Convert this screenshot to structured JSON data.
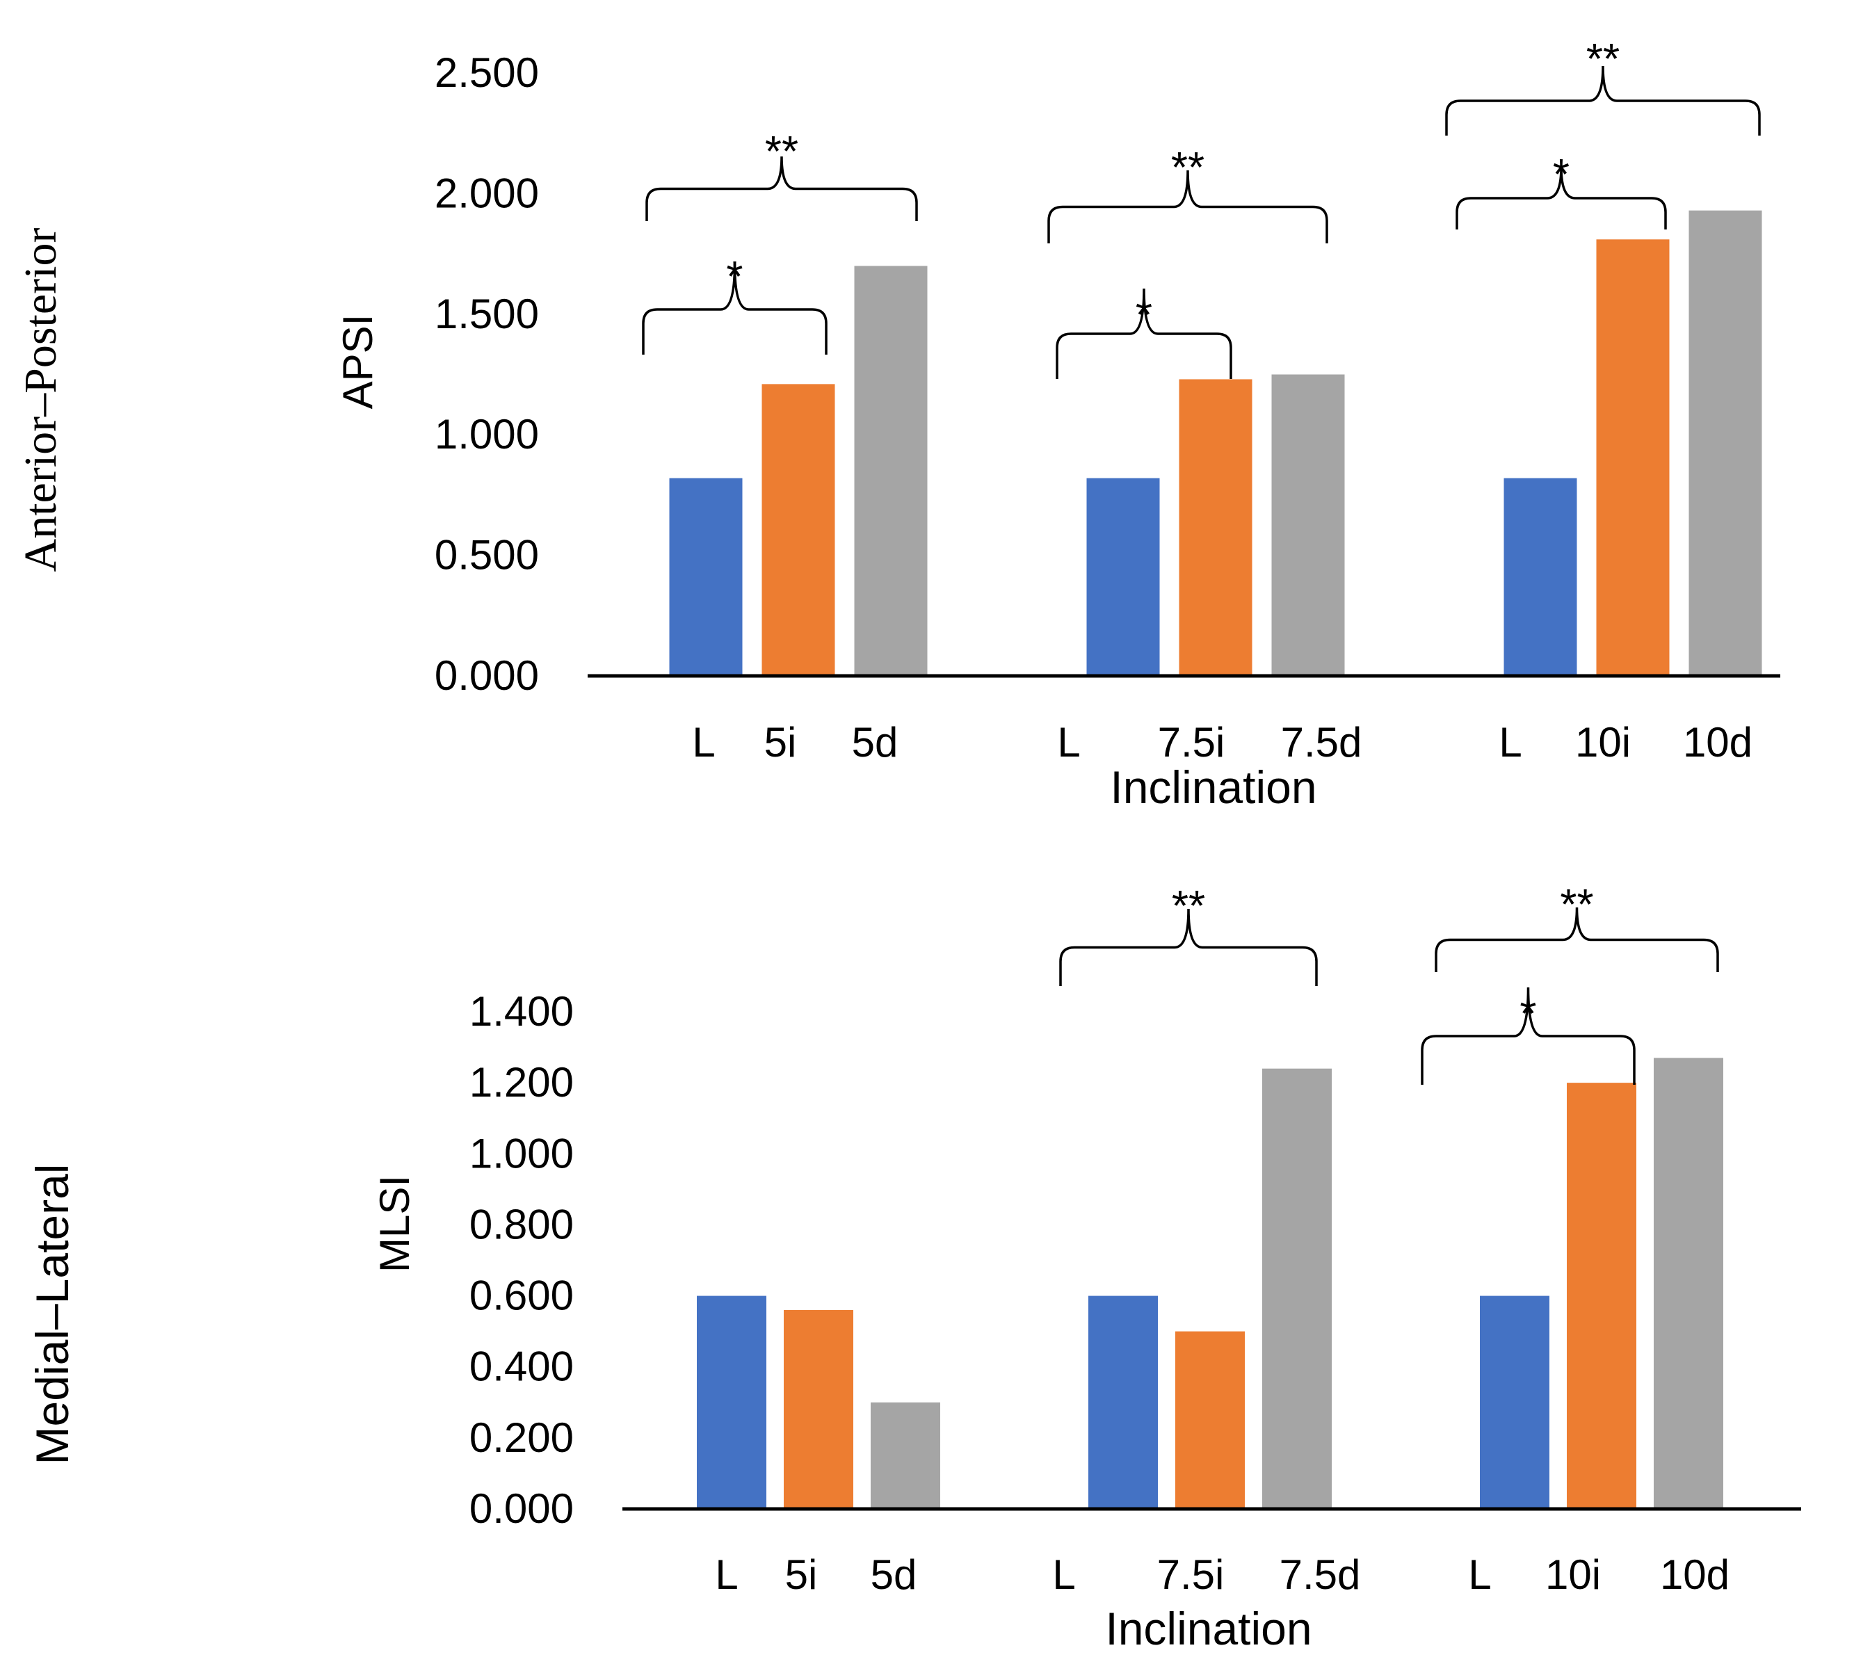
{
  "colors": {
    "L": "#4472c4",
    "i": "#ed7d31",
    "d": "#a5a5a5"
  },
  "chart_data": [
    {
      "type": "bar",
      "row_label": "Anterior–Posterior",
      "ylabel": "APSI",
      "xlabel": "Inclination",
      "ylim": [
        0,
        2.5
      ],
      "yticks": [
        "0.000",
        "0.500",
        "1.000",
        "1.500",
        "2.000",
        "2.500"
      ],
      "groups": [
        {
          "bars": [
            {
              "label": "L",
              "value": 0.82,
              "color_key": "L"
            },
            {
              "label": "5i",
              "value": 1.21,
              "color_key": "i"
            },
            {
              "label": "5d",
              "value": 1.7,
              "color_key": "d"
            }
          ],
          "annotations": [
            {
              "text": "*",
              "from": 0,
              "to": 1
            },
            {
              "text": "**",
              "from": 0,
              "to": 2
            }
          ]
        },
        {
          "bars": [
            {
              "label": "L",
              "value": 0.82,
              "color_key": "L"
            },
            {
              "label": "7.5i",
              "value": 1.23,
              "color_key": "i"
            },
            {
              "label": "7.5d",
              "value": 1.25,
              "color_key": "d"
            }
          ],
          "annotations": [
            {
              "text": "*",
              "from": 0,
              "to": 1
            },
            {
              "text": "**",
              "from": 0,
              "to": 2
            }
          ]
        },
        {
          "bars": [
            {
              "label": "L",
              "value": 0.82,
              "color_key": "L"
            },
            {
              "label": "10i",
              "value": 1.81,
              "color_key": "i"
            },
            {
              "label": "10d",
              "value": 1.93,
              "color_key": "d"
            }
          ],
          "annotations": [
            {
              "text": "*",
              "from": 0,
              "to": 1
            },
            {
              "text": "**",
              "from": 0,
              "to": 2
            }
          ]
        }
      ]
    },
    {
      "type": "bar",
      "row_label": "Medial–Lateral",
      "ylabel": "MLSI",
      "xlabel": "Inclination",
      "ylim": [
        0,
        1.4
      ],
      "yticks": [
        "0.000",
        "0.200",
        "0.400",
        "0.600",
        "0.800",
        "1.000",
        "1.200",
        "1.400"
      ],
      "groups": [
        {
          "bars": [
            {
              "label": "L",
              "value": 0.6,
              "color_key": "L"
            },
            {
              "label": "5i",
              "value": 0.56,
              "color_key": "i"
            },
            {
              "label": "5d",
              "value": 0.3,
              "color_key": "d"
            }
          ],
          "annotations": []
        },
        {
          "bars": [
            {
              "label": "L",
              "value": 0.6,
              "color_key": "L"
            },
            {
              "label": "7.5i",
              "value": 0.5,
              "color_key": "i"
            },
            {
              "label": "7.5d",
              "value": 1.24,
              "color_key": "d"
            }
          ],
          "annotations": [
            {
              "text": "**",
              "from": 0,
              "to": 2
            }
          ]
        },
        {
          "bars": [
            {
              "label": "L",
              "value": 0.6,
              "color_key": "L"
            },
            {
              "label": "10i",
              "value": 1.2,
              "color_key": "i"
            },
            {
              "label": "10d",
              "value": 1.27,
              "color_key": "d"
            }
          ],
          "annotations": [
            {
              "text": "*",
              "from": 0,
              "to": 1
            },
            {
              "text": "**",
              "from": 0,
              "to": 2
            }
          ]
        }
      ]
    }
  ]
}
